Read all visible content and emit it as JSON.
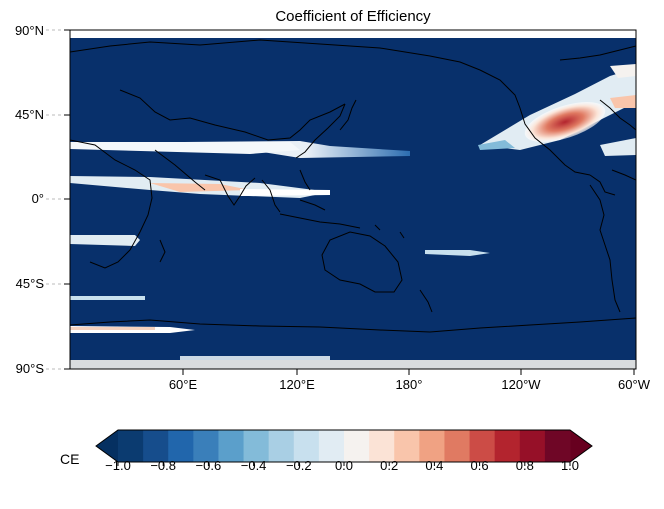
{
  "title": "Coefficient of Efficiency",
  "y_ticks": [
    "90°N",
    "45°N",
    "0°",
    "45°S",
    "90°S"
  ],
  "x_ticks": [
    "60°E",
    "120°E",
    "180°",
    "120°W",
    "60°W"
  ],
  "colorbar": {
    "label": "CE",
    "ticks": [
      "−1.0",
      "−0.8",
      "−0.6",
      "−0.4",
      "−0.2",
      "0.0",
      "0.2",
      "0.4",
      "0.6",
      "0.8",
      "1.0"
    ],
    "colors": [
      "#0b3b70",
      "#164d8c",
      "#2166ac",
      "#3a7fba",
      "#5b9fcb",
      "#83bbd9",
      "#a9cfe4",
      "#c8e0ee",
      "#e1ecf3",
      "#f5f2ef",
      "#fbe3d6",
      "#f9c5ab",
      "#f0a283",
      "#e07a62",
      "#cc4c46",
      "#b3242e",
      "#961028",
      "#6f0626"
    ],
    "extend": "both"
  },
  "map": {
    "background_color": "#08306b",
    "colormap": "RdBu_r",
    "vmin": -1.0,
    "vmax": 1.0,
    "projection": "PlateCarree, central longitude 180"
  }
}
